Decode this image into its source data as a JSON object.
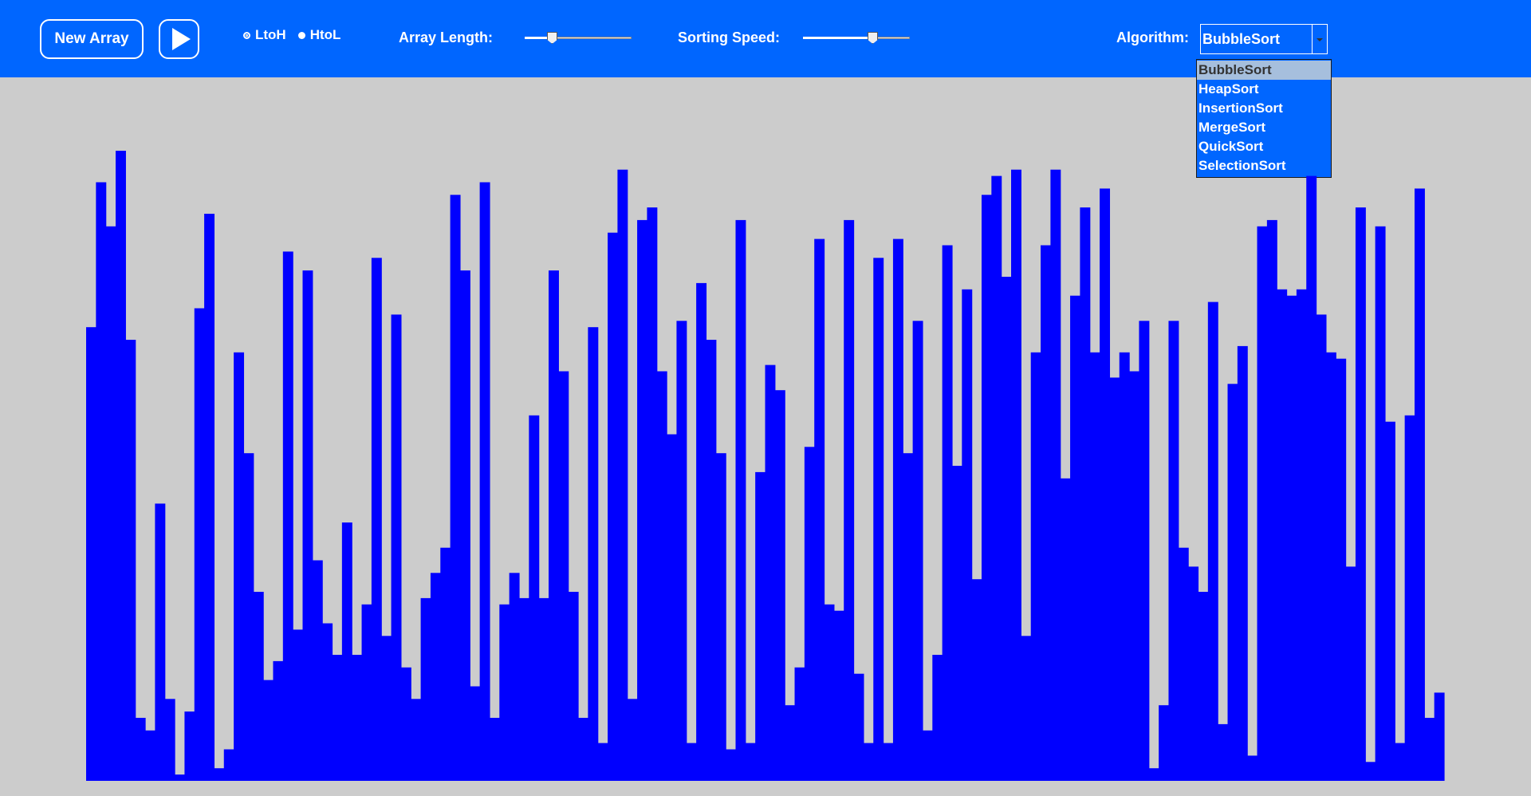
{
  "toolbar": {
    "new_array_label": "New Array",
    "play_icon": "play-icon",
    "order_options": [
      {
        "label": "LtoH",
        "checked": true
      },
      {
        "label": "HtoL",
        "checked": false
      }
    ],
    "array_length_label": "Array Length:",
    "array_length_value": 0.25,
    "sorting_speed_label": "Sorting Speed:",
    "sorting_speed_value": 0.65,
    "algorithm_label": "Algorithm:",
    "algorithm_selected": "BubbleSort",
    "algorithm_options": [
      "BubbleSort",
      "HeapSort",
      "InsertionSort",
      "MergeSort",
      "QuickSort",
      "SelectionSort"
    ]
  },
  "colors": {
    "header": "#0066ff",
    "background": "#cccccc",
    "bar": "#0000ff",
    "selected_option": "#a6bfdd"
  },
  "chart_data": {
    "type": "bar",
    "title": "",
    "xlabel": "",
    "ylabel": "",
    "ylim": [
      0,
      100
    ],
    "values": [
      72,
      95,
      88,
      100,
      70,
      10,
      8,
      44,
      13,
      1,
      11,
      75,
      90,
      2,
      5,
      68,
      52,
      30,
      16,
      19,
      84,
      24,
      81,
      35,
      25,
      20,
      41,
      20,
      28,
      83,
      23,
      74,
      18,
      13,
      29,
      33,
      37,
      93,
      81,
      15,
      95,
      10,
      28,
      33,
      29,
      58,
      29,
      81,
      65,
      30,
      10,
      72,
      6,
      87,
      97,
      13,
      89,
      91,
      65,
      55,
      73,
      6,
      79,
      70,
      52,
      5,
      89,
      6,
      49,
      66,
      62,
      12,
      18,
      53,
      86,
      28,
      27,
      89,
      17,
      6,
      83,
      6,
      86,
      52,
      73,
      8,
      20,
      85,
      50,
      78,
      32,
      93,
      96,
      80,
      97,
      23,
      68,
      85,
      97,
      48,
      77,
      91,
      68,
      94,
      64,
      68,
      65,
      73,
      2,
      12,
      73,
      37,
      34,
      30,
      76,
      9,
      63,
      69,
      4,
      88,
      89,
      78,
      77,
      78,
      96,
      74,
      68,
      67,
      34,
      91,
      3,
      88,
      57,
      6,
      58,
      94,
      10,
      14
    ]
  }
}
